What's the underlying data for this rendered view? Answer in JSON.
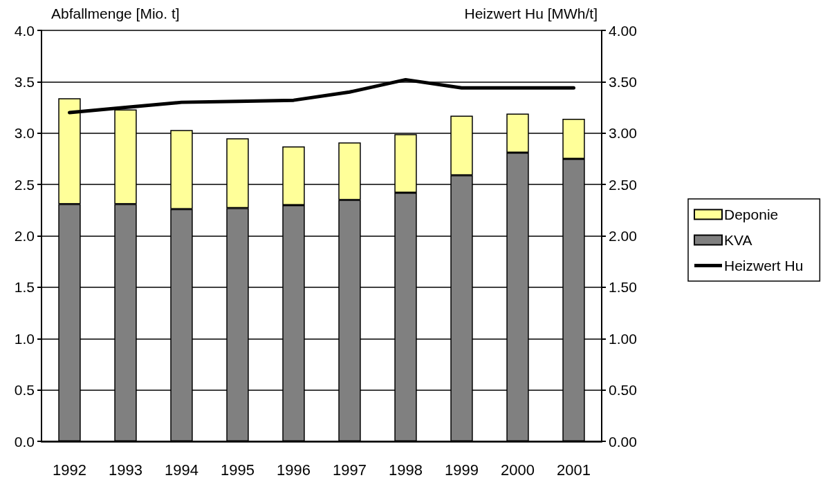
{
  "chart_data": {
    "type": "bar",
    "stacked": true,
    "categories": [
      "1992",
      "1993",
      "1994",
      "1995",
      "1996",
      "1997",
      "1998",
      "1999",
      "2000",
      "2001"
    ],
    "series": [
      {
        "name": "KVA",
        "color": "#808080",
        "values": [
          2.31,
          2.31,
          2.26,
          2.27,
          2.3,
          2.35,
          2.42,
          2.59,
          2.81,
          2.75
        ]
      },
      {
        "name": "Deponie",
        "color": "#ffff99",
        "values": [
          1.03,
          0.92,
          0.77,
          0.68,
          0.57,
          0.56,
          0.57,
          0.58,
          0.38,
          0.39
        ]
      },
      {
        "name": "Heizwert Hu",
        "type": "line",
        "axis": "y2",
        "color": "#000000",
        "values": [
          3.2,
          3.25,
          3.3,
          3.31,
          3.32,
          3.4,
          3.52,
          3.44,
          3.44,
          3.44
        ]
      }
    ],
    "ylabel": "Abfallmenge [Mio. t]",
    "y2label": "Heizwert Hu [MWh/t]",
    "ylim": [
      0,
      4
    ],
    "yticks": [
      {
        "value": 0,
        "label": "0.0"
      },
      {
        "value": 0.5,
        "label": "0.5"
      },
      {
        "value": 1,
        "label": "1.0"
      },
      {
        "value": 1.5,
        "label": "1.5"
      },
      {
        "value": 2,
        "label": "2.0"
      },
      {
        "value": 2.5,
        "label": "2.5"
      },
      {
        "value": 3,
        "label": "3.0"
      },
      {
        "value": 3.5,
        "label": "3.5"
      },
      {
        "value": 4,
        "label": "4.0"
      }
    ],
    "y2lim": [
      0,
      4
    ],
    "y2ticks": [
      {
        "value": 0,
        "label": "0.00"
      },
      {
        "value": 0.5,
        "label": "0.50"
      },
      {
        "value": 1,
        "label": "1.00"
      },
      {
        "value": 1.5,
        "label": "1.50"
      },
      {
        "value": 2,
        "label": "2.00"
      },
      {
        "value": 2.5,
        "label": "2.50"
      },
      {
        "value": 3,
        "label": "3.00"
      },
      {
        "value": 3.5,
        "label": "3.50"
      },
      {
        "value": 4,
        "label": "4.00"
      }
    ],
    "grid": "y",
    "legend": "right",
    "marker": "none",
    "line_style": "solid"
  }
}
